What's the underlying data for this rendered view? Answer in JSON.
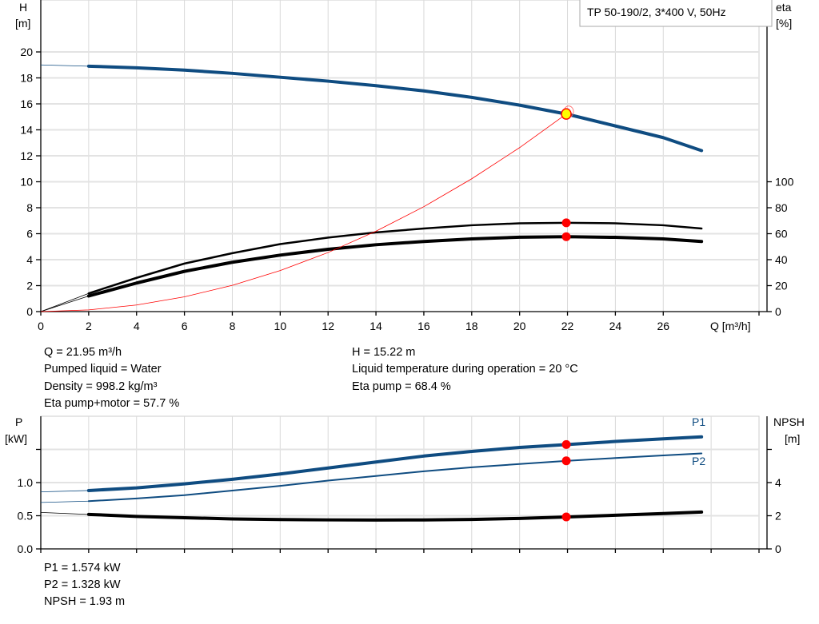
{
  "chart_data": [
    {
      "type": "line",
      "title": "TP 50-190/2, 3*400 V, 50Hz",
      "xlabel": "Q [m³/h]",
      "ylabel_left": [
        "H",
        "[m]"
      ],
      "ylabel_right": [
        "eta",
        "[%]"
      ],
      "xlim": [
        0,
        30
      ],
      "ylim_left": [
        0,
        24
      ],
      "ylim_right": [
        0,
        240
      ],
      "x_ticks": [
        0,
        2,
        4,
        6,
        8,
        10,
        12,
        14,
        16,
        18,
        20,
        22,
        24,
        26
      ],
      "y_ticks_left": [
        0,
        2,
        4,
        6,
        8,
        10,
        12,
        14,
        16,
        18,
        20
      ],
      "y_ticks_right": [
        0,
        20,
        40,
        60,
        80,
        100
      ],
      "grid": true,
      "series": [
        {
          "key": "H",
          "axis": "left",
          "color": "#0f4c81",
          "x": [
            0,
            2,
            4,
            6,
            8,
            10,
            12,
            14,
            16,
            18,
            20,
            22,
            24,
            26,
            27.6
          ],
          "y": [
            19.0,
            18.9,
            18.78,
            18.6,
            18.35,
            18.05,
            17.75,
            17.4,
            17.0,
            16.5,
            15.9,
            15.2,
            14.3,
            13.4,
            12.4
          ]
        },
        {
          "key": "eta_pump",
          "axis": "right",
          "color": "#000000",
          "x": [
            0,
            2,
            4,
            6,
            8,
            10,
            12,
            14,
            16,
            18,
            20,
            22,
            24,
            26,
            27.6
          ],
          "y": [
            0,
            14,
            26,
            37,
            45,
            52,
            57,
            61,
            64,
            66.5,
            68,
            68.4,
            68,
            66.5,
            64
          ]
        },
        {
          "key": "eta_pump_motor",
          "axis": "right",
          "color": "#000000",
          "x": [
            0,
            2,
            4,
            6,
            8,
            10,
            12,
            14,
            16,
            18,
            20,
            22,
            24,
            26,
            27.6
          ],
          "y": [
            0,
            12,
            22,
            31,
            38,
            43.5,
            48,
            51.5,
            54,
            56,
            57.3,
            57.7,
            57.2,
            56,
            54
          ]
        },
        {
          "key": "system_curve",
          "axis": "left",
          "color": "#ff0000",
          "x": [
            0,
            2,
            4,
            6,
            8,
            10,
            12,
            14,
            16,
            18,
            20,
            21.95
          ],
          "y": [
            0,
            0.13,
            0.51,
            1.14,
            2.02,
            3.16,
            4.55,
            6.19,
            8.08,
            10.23,
            12.63,
            15.22
          ]
        }
      ],
      "operating_points": [
        {
          "key": "duty_point",
          "x": 21.95,
          "y": 15.22,
          "axis": "left",
          "color": "#ffff00"
        },
        {
          "key": "eta_pump_point",
          "x": 21.95,
          "y": 68.4,
          "axis": "right",
          "color": "#ff0000"
        },
        {
          "key": "eta_pump_motor_point",
          "x": 21.95,
          "y": 57.7,
          "axis": "right",
          "color": "#ff0000"
        }
      ]
    },
    {
      "type": "line",
      "ylabel_left": [
        "P",
        "[kW]"
      ],
      "ylabel_right": [
        "NPSH",
        "[m]"
      ],
      "xlim": [
        0,
        30
      ],
      "ylim_left": [
        0,
        2.0
      ],
      "ylim_right": [
        0,
        8
      ],
      "x_ticks": [
        0,
        2,
        4,
        6,
        8,
        10,
        12,
        14,
        16,
        18,
        20,
        22,
        24,
        26,
        28
      ],
      "y_ticks_left": [
        0.0,
        0.5,
        1.0,
        1.5
      ],
      "y_tick_labels_left": [
        "0.0",
        "0.5",
        "1.0",
        ""
      ],
      "y_ticks_right": [
        0,
        2,
        4,
        6
      ],
      "y_tick_labels_right": [
        "0",
        "2",
        "4",
        ""
      ],
      "grid": true,
      "series": [
        {
          "key": "P1",
          "name": "P1",
          "axis": "left",
          "color": "#0f4c81",
          "x": [
            0,
            2,
            4,
            6,
            8,
            10,
            12,
            14,
            16,
            18,
            20,
            22,
            24,
            26,
            27.6
          ],
          "y": [
            0.86,
            0.88,
            0.92,
            0.98,
            1.05,
            1.13,
            1.22,
            1.31,
            1.4,
            1.47,
            1.53,
            1.574,
            1.62,
            1.66,
            1.69
          ]
        },
        {
          "key": "P2",
          "name": "P2",
          "axis": "left",
          "color": "#0f4c81",
          "x": [
            0,
            2,
            4,
            6,
            8,
            10,
            12,
            14,
            16,
            18,
            20,
            22,
            24,
            26,
            27.6
          ],
          "y": [
            0.7,
            0.72,
            0.76,
            0.81,
            0.88,
            0.95,
            1.03,
            1.1,
            1.17,
            1.23,
            1.28,
            1.328,
            1.37,
            1.41,
            1.44
          ]
        },
        {
          "key": "NPSH",
          "axis": "right",
          "color": "#000000",
          "x": [
            0,
            2,
            4,
            6,
            8,
            10,
            12,
            14,
            16,
            18,
            20,
            22,
            24,
            26,
            27.6
          ],
          "y": [
            2.2,
            2.08,
            1.96,
            1.88,
            1.81,
            1.77,
            1.75,
            1.74,
            1.75,
            1.78,
            1.84,
            1.93,
            2.03,
            2.13,
            2.22
          ]
        }
      ],
      "operating_points": [
        {
          "key": "P1_point",
          "x": 21.95,
          "y": 1.574,
          "axis": "left",
          "color": "#ff0000"
        },
        {
          "key": "P2_point",
          "x": 21.95,
          "y": 1.328,
          "axis": "left",
          "color": "#ff0000"
        },
        {
          "key": "NPSH_point",
          "x": 21.95,
          "y": 1.93,
          "axis": "right",
          "color": "#ff0000"
        }
      ]
    }
  ],
  "info_top": {
    "q": "Q = 21.95 m³/h",
    "liquid": "Pumped liquid = Water",
    "density": "Density = 998.2 kg/m³",
    "eta_pm": "Eta pump+motor = 57.7 %",
    "h": "H = 15.22 m",
    "temp": "Liquid temperature during operation = 20 °C",
    "eta_pump": "Eta pump = 68.4 %"
  },
  "info_bottom": {
    "p1": "P1 = 1.574 kW",
    "p2": "P2 = 1.328 kW",
    "npsh": "NPSH = 1.93 m"
  }
}
